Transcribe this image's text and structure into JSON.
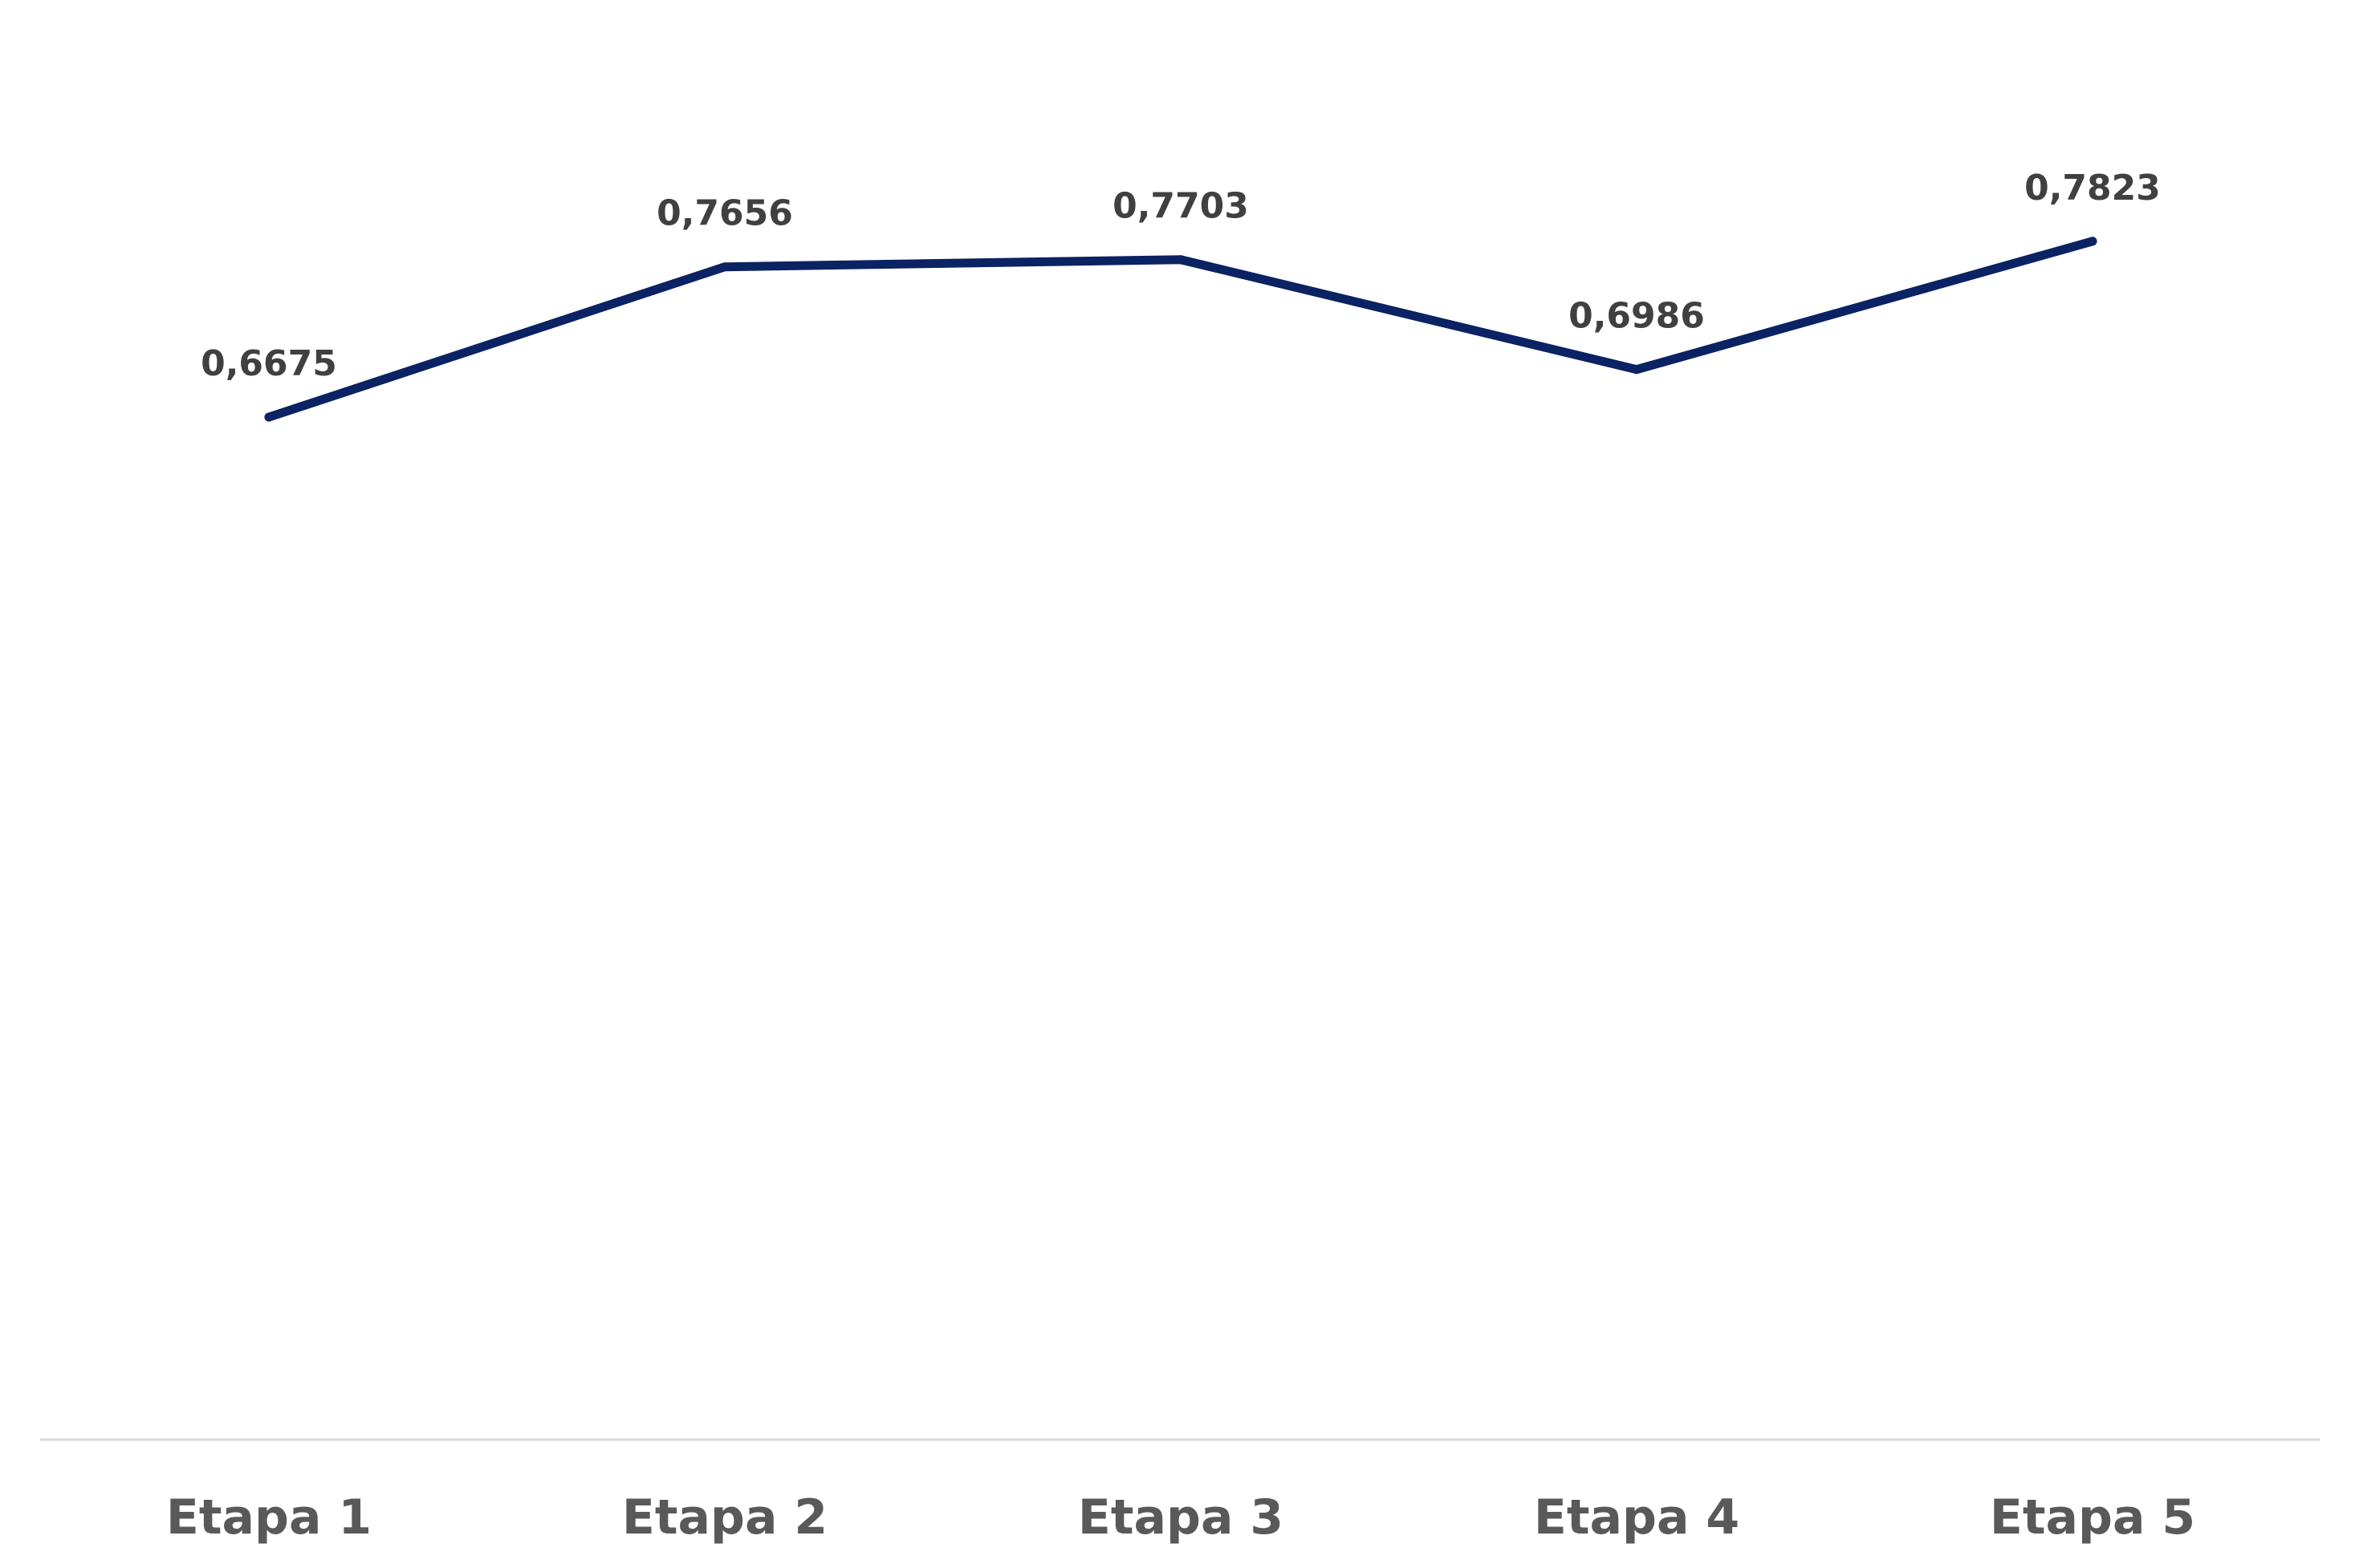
{
  "chart_data": {
    "type": "line",
    "categories": [
      "Etapa 1",
      "Etapa 2",
      "Etapa 3",
      "Etapa 4",
      "Etapa 5"
    ],
    "series": [
      {
        "values": [
          0.6675,
          0.7656,
          0.7703,
          0.6986,
          0.7823
        ],
        "labels": [
          "0,6675",
          "0,7656",
          "0,7703",
          "0,6986",
          "0,7823"
        ],
        "color": "#0b2263"
      }
    ],
    "ylim": [
      0,
      1
    ],
    "grid": false,
    "legend": "none",
    "axis_color": "#d9d9d9",
    "tick_label_color": "#595959",
    "data_label_color": "#404040"
  }
}
